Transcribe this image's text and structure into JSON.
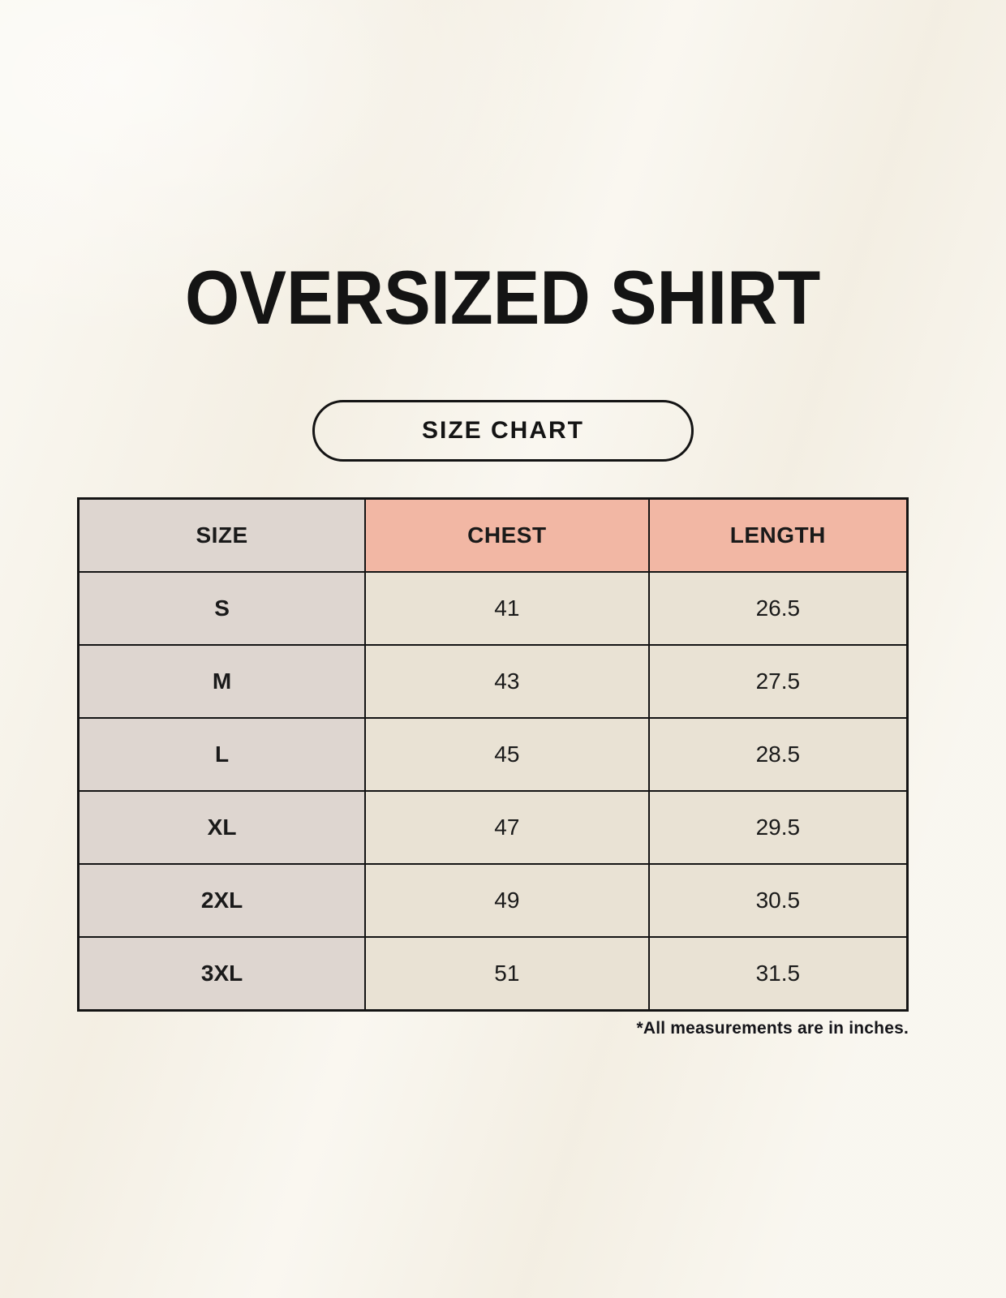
{
  "page": {
    "title": "OVERSIZED SHIRT",
    "badge_label": "SIZE CHART",
    "footnote": "*All measurements are in inches."
  },
  "colors": {
    "background": "#f7f3e9",
    "header_accent": "#f2b7a4",
    "size_column_fill": "#ded6d0",
    "value_cell_fill": "#e9e2d4",
    "border": "#141414",
    "text": "#1a1a1a"
  },
  "chart_data": {
    "type": "table",
    "title": "OVERSIZED SHIRT",
    "columns": [
      "SIZE",
      "CHEST",
      "LENGTH"
    ],
    "rows": [
      [
        "S",
        "41",
        "26.5"
      ],
      [
        "M",
        "43",
        "27.5"
      ],
      [
        "L",
        "45",
        "28.5"
      ],
      [
        "XL",
        "47",
        "29.5"
      ],
      [
        "2XL",
        "49",
        "30.5"
      ],
      [
        "3XL",
        "51",
        "31.5"
      ]
    ],
    "footnote": "*All measurements are in inches."
  }
}
